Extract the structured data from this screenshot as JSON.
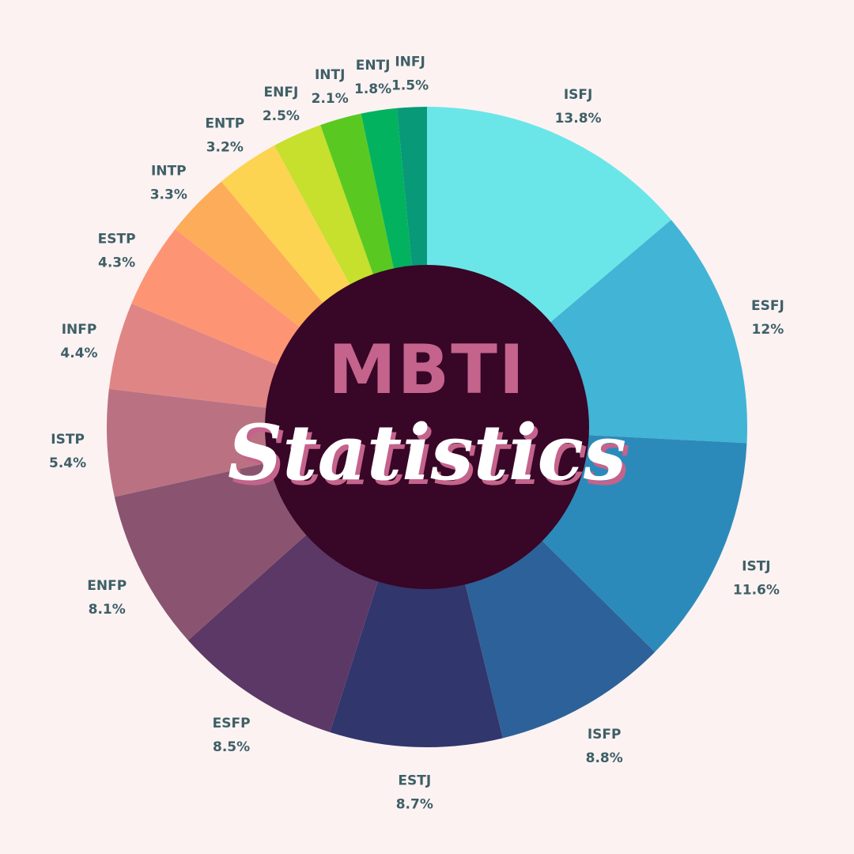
{
  "chart_data": {
    "type": "pie",
    "donut": true,
    "start_angle_deg": 0,
    "direction": "clockwise",
    "title": "MBTI",
    "subtitle": "Statistics",
    "slices": [
      {
        "name": "ISFJ",
        "value": 13.8,
        "label": "13.8%",
        "color": "#6be6e8"
      },
      {
        "name": "ESFJ",
        "value": 12,
        "label": "12%",
        "color": "#42b4d6"
      },
      {
        "name": "ISTJ",
        "value": 11.6,
        "label": "11.6%",
        "color": "#2c8aba"
      },
      {
        "name": "ISFP",
        "value": 8.8,
        "label": "8.8%",
        "color": "#2d6199"
      },
      {
        "name": "ESTJ",
        "value": 8.7,
        "label": "8.7%",
        "color": "#31366c"
      },
      {
        "name": "ESFP",
        "value": 8.5,
        "label": "8.5%",
        "color": "#5c3866"
      },
      {
        "name": "ENFP",
        "value": 8.1,
        "label": "8.1%",
        "color": "#8a5470"
      },
      {
        "name": "ISTP",
        "value": 5.4,
        "label": "5.4%",
        "color": "#ba7282"
      },
      {
        "name": "INFP",
        "value": 4.4,
        "label": "4.4%",
        "color": "#e08585"
      },
      {
        "name": "ESTP",
        "value": 4.3,
        "label": "4.3%",
        "color": "#fd9574"
      },
      {
        "name": "INTP",
        "value": 3.3,
        "label": "3.3%",
        "color": "#fdac5a"
      },
      {
        "name": "ENTP",
        "value": 3.2,
        "label": "3.2%",
        "color": "#fdd352"
      },
      {
        "name": "ENFJ",
        "value": 2.5,
        "label": "2.5%",
        "color": "#c6e02d"
      },
      {
        "name": "INTJ",
        "value": 2.1,
        "label": "2.1%",
        "color": "#59c922"
      },
      {
        "name": "ENTJ",
        "value": 1.8,
        "label": "1.8%",
        "color": "#02b25f"
      },
      {
        "name": "INFJ",
        "value": 1.5,
        "label": "1.5%",
        "color": "#089a78"
      }
    ],
    "colors": {
      "background": "#fcf2f2",
      "center_fill": "#380626",
      "label_text": "#3e5f66",
      "title_accent": "#c4638c"
    }
  }
}
